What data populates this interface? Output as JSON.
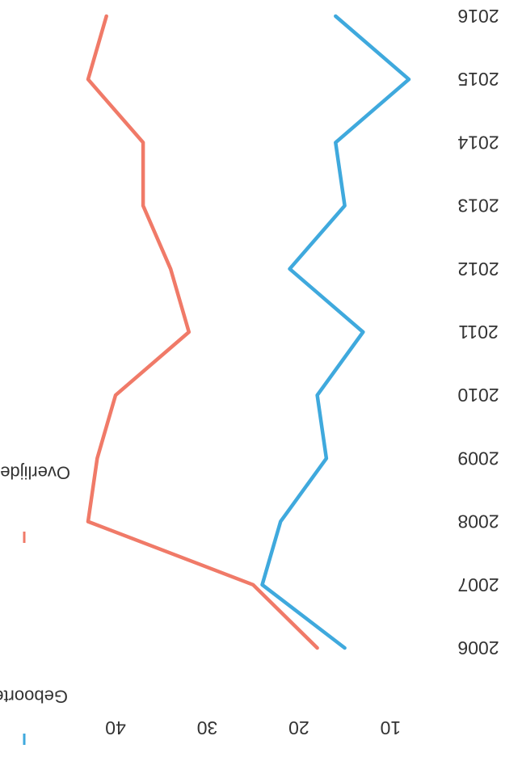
{
  "chart_data": {
    "type": "line",
    "x": [
      "2006",
      "2007",
      "2008",
      "2009",
      "2010",
      "2011",
      "2012",
      "2013",
      "2014",
      "2015",
      "2016"
    ],
    "series": [
      {
        "name": "Geboorten",
        "color": "#3fa9dd",
        "values": [
          15,
          24,
          22,
          17,
          18,
          13,
          21,
          15,
          16,
          8,
          16
        ]
      },
      {
        "name": "Overlijdens",
        "color": "#f07a68",
        "values": [
          18,
          25,
          43,
          42,
          40,
          32,
          34,
          37,
          37,
          43,
          41
        ]
      }
    ],
    "yticks": [
      40,
      30,
      20,
      10
    ],
    "ylim": [
      5,
      48
    ],
    "legend_position": "bottom",
    "grid": false,
    "orientation": "rotated 180 degrees"
  }
}
